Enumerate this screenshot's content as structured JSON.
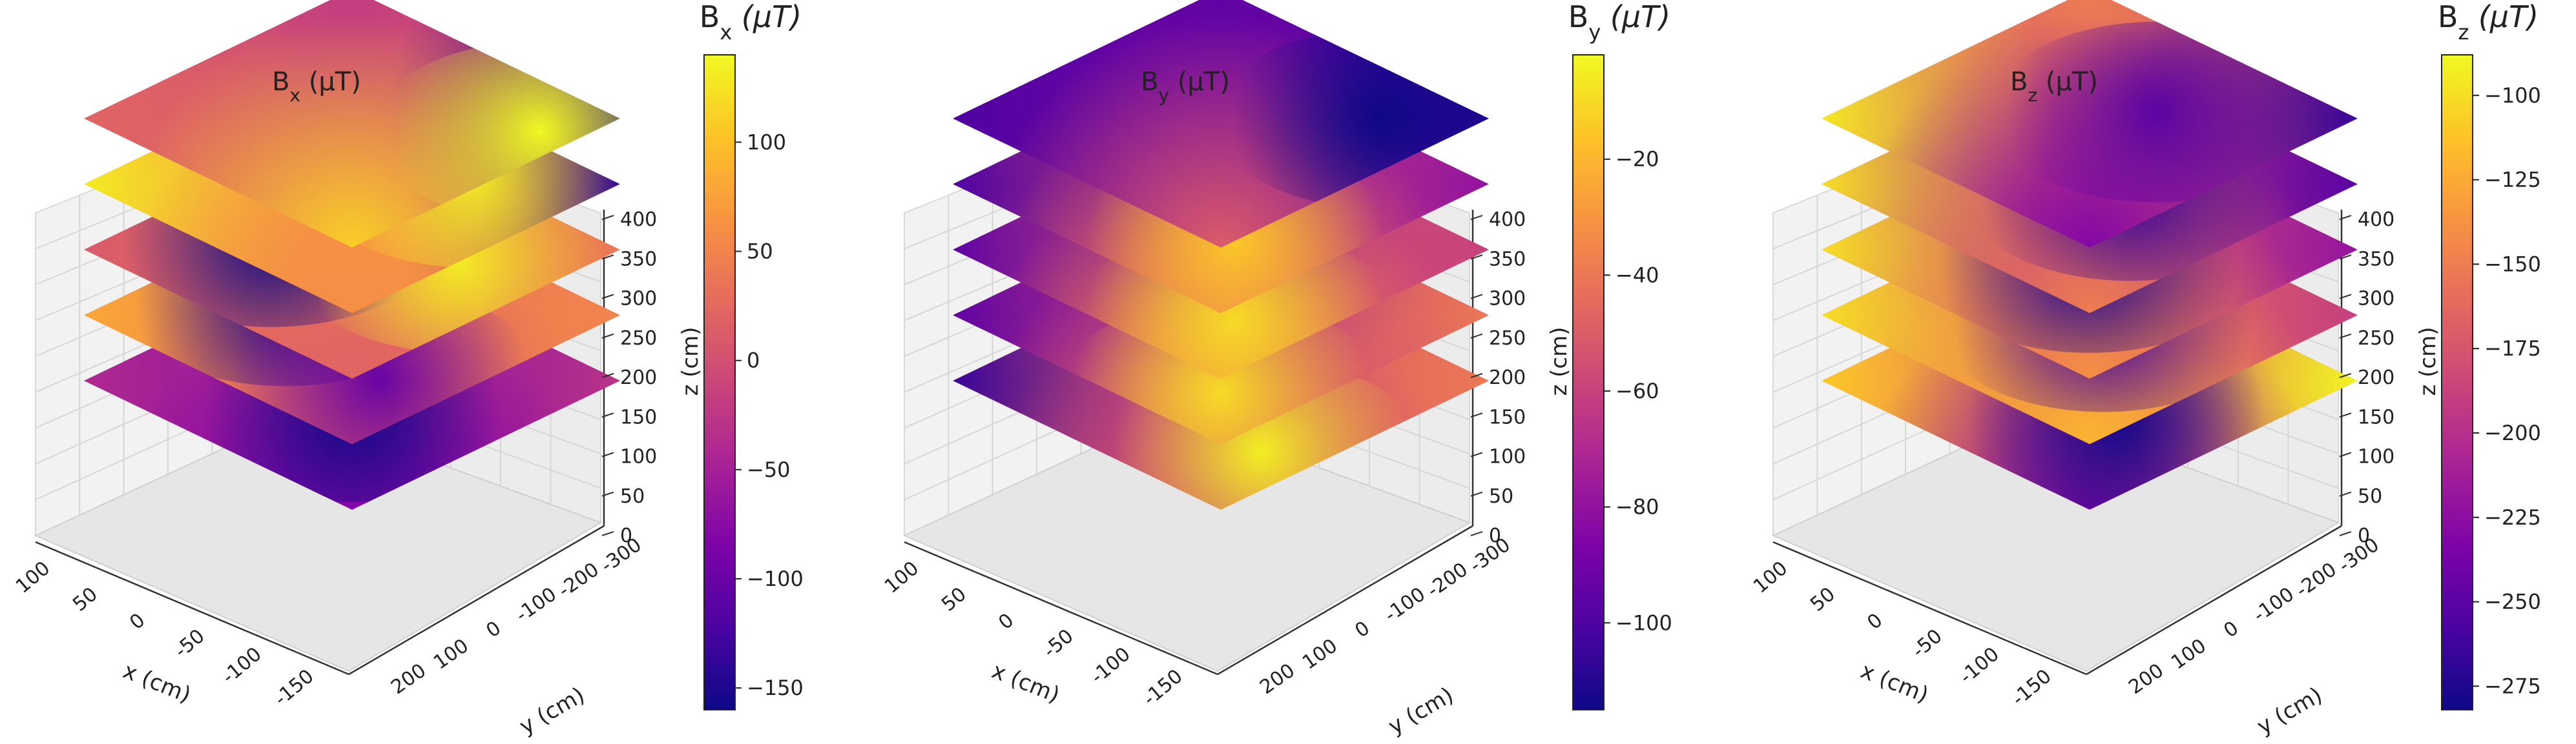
{
  "chart_data": [
    {
      "type": "heatmap",
      "kind": "3d-stacked-planes",
      "title_main": "B",
      "title_sub": "x",
      "title_unit": " (μT)",
      "colorbar_label_main": "B",
      "colorbar_label_sub": "x",
      "colorbar_label_unit": " (μT)",
      "colormap": "plasma",
      "clim": [
        -160,
        140
      ],
      "colorbar_ticks": [
        "100",
        "50",
        "0",
        "−50",
        "−100",
        "−150"
      ],
      "colorbar_tick_values": [
        100,
        50,
        0,
        -50,
        -100,
        -150
      ],
      "xlabel": "x (cm)",
      "ylabel": "y (cm)",
      "zlabel": "z (cm)",
      "x_ticks": [
        "100",
        "50",
        "0",
        "-50",
        "-100",
        "-150"
      ],
      "y_ticks": [
        "-300",
        "-200",
        "-100",
        "0",
        "100",
        "200"
      ],
      "z_ticks": [
        "400",
        "350",
        "300",
        "250",
        "200",
        "150",
        "100",
        "50",
        "0"
      ],
      "xlim": [
        -180,
        120
      ],
      "ylim": [
        -330,
        230
      ],
      "zlim": [
        0,
        410
      ],
      "plane_z": [
        0,
        85,
        170,
        255,
        340
      ],
      "planes": [
        {
          "z": 0,
          "corner_values": {
            "far": -20,
            "left": -40,
            "right": -30,
            "near": -80,
            "center": -70
          },
          "hotspots": [
            [
              0.62,
              0.62,
              -160
            ]
          ]
        },
        {
          "z": 85,
          "corner_values": {
            "far": 30,
            "left": 80,
            "right": 50,
            "near": 10,
            "center": 40
          },
          "hotspots": [
            [
              0.3,
              0.55,
              -150
            ],
            [
              0.8,
              0.7,
              -100
            ]
          ]
        },
        {
          "z": 170,
          "corner_values": {
            "far": 90,
            "left": 10,
            "right": 40,
            "near": 20,
            "center": 30
          },
          "hotspots": [
            [
              0.3,
              0.6,
              -160
            ],
            [
              0.75,
              0.35,
              130
            ]
          ]
        },
        {
          "z": 255,
          "corner_values": {
            "far": 80,
            "left": 130,
            "right": -140,
            "near": 60,
            "center": 60
          },
          "hotspots": [
            [
              0.7,
              0.25,
              130
            ]
          ]
        },
        {
          "z": 340,
          "corner_values": {
            "far": -20,
            "left": 20,
            "right": -150,
            "near": 110,
            "center": 10
          },
          "hotspots": [
            [
              0.9,
              0.2,
              140
            ]
          ]
        }
      ]
    },
    {
      "type": "heatmap",
      "kind": "3d-stacked-planes",
      "title_main": "B",
      "title_sub": "y",
      "title_unit": " (μT)",
      "colorbar_label_main": "B",
      "colorbar_label_sub": "y",
      "colorbar_label_unit": " (μT)",
      "colormap": "plasma",
      "clim": [
        -115,
        -2
      ],
      "colorbar_ticks": [
        "−20",
        "−40",
        "−60",
        "−80",
        "−100"
      ],
      "colorbar_tick_values": [
        -20,
        -40,
        -60,
        -80,
        -100
      ],
      "xlabel": "x (cm)",
      "ylabel": "y (cm)",
      "zlabel": "z (cm)",
      "x_ticks": [
        "100",
        "50",
        "0",
        "-50",
        "-100",
        "-150"
      ],
      "y_ticks": [
        "-300",
        "-200",
        "-100",
        "0",
        "100",
        "200"
      ],
      "z_ticks": [
        "400",
        "350",
        "300",
        "250",
        "200",
        "150",
        "100",
        "50",
        "0"
      ],
      "xlim": [
        -180,
        120
      ],
      "ylim": [
        -330,
        230
      ],
      "zlim": [
        0,
        410
      ],
      "plane_z": [
        0,
        85,
        170,
        255,
        340
      ],
      "planes": [
        {
          "z": 0,
          "corner_values": {
            "far": -60,
            "left": -105,
            "right": -40,
            "near": -60,
            "center": -50
          },
          "hotspots": [
            [
              0.85,
              0.7,
              -5
            ]
          ]
        },
        {
          "z": 85,
          "corner_values": {
            "far": -90,
            "left": -95,
            "right": -40,
            "near": -45,
            "center": -60
          },
          "hotspots": [
            [
              0.8,
              0.8,
              -10
            ]
          ]
        },
        {
          "z": 170,
          "corner_values": {
            "far": -100,
            "left": -95,
            "right": -60,
            "near": -35,
            "center": -55
          },
          "hotspots": [
            [
              0.8,
              0.75,
              -10
            ]
          ]
        },
        {
          "z": 255,
          "corner_values": {
            "far": -100,
            "left": -100,
            "right": -80,
            "near": -40,
            "center": -60
          },
          "hotspots": [
            [
              0.75,
              0.7,
              -15
            ]
          ]
        },
        {
          "z": 340,
          "corner_values": {
            "far": -95,
            "left": -100,
            "right": -110,
            "near": -50,
            "center": -90
          },
          "hotspots": [
            [
              0.8,
              0.2,
              -115
            ]
          ]
        }
      ]
    },
    {
      "type": "heatmap",
      "kind": "3d-stacked-planes",
      "title_main": "B",
      "title_sub": "z",
      "title_unit": " (μT)",
      "colorbar_label_main": "B",
      "colorbar_label_sub": "z",
      "colorbar_label_unit": " (μT)",
      "colormap": "plasma",
      "clim": [
        -282,
        -88
      ],
      "colorbar_ticks": [
        "−100",
        "−125",
        "−150",
        "−175",
        "−200",
        "−225",
        "−250",
        "−275"
      ],
      "colorbar_tick_values": [
        -100,
        -125,
        -150,
        -175,
        -200,
        -225,
        -250,
        -275
      ],
      "xlabel": "x (cm)",
      "ylabel": "y (cm)",
      "zlabel": "z (cm)",
      "x_ticks": [
        "100",
        "50",
        "0",
        "-50",
        "-100",
        "-150"
      ],
      "y_ticks": [
        "-300",
        "-200",
        "-100",
        "0",
        "100",
        "200"
      ],
      "z_ticks": [
        "400",
        "350",
        "300",
        "250",
        "200",
        "150",
        "100",
        "50",
        "0"
      ],
      "xlim": [
        -180,
        120
      ],
      "ylim": [
        -330,
        230
      ],
      "zlim": [
        0,
        410
      ],
      "plane_z": [
        0,
        85,
        170,
        255,
        340
      ],
      "planes": [
        {
          "z": 0,
          "corner_values": {
            "far": -200,
            "left": -110,
            "right": -90,
            "near": -230,
            "center": -160
          },
          "hotspots": [
            [
              0.7,
              0.6,
              -280
            ]
          ]
        },
        {
          "z": 85,
          "corner_values": {
            "far": -180,
            "left": -100,
            "right": -190,
            "near": -120,
            "center": -160
          },
          "hotspots": [
            [
              0.55,
              0.5,
              -260
            ]
          ]
        },
        {
          "z": 170,
          "corner_values": {
            "far": -190,
            "left": -100,
            "right": -220,
            "near": -140,
            "center": -180
          },
          "hotspots": [
            [
              0.55,
              0.55,
              -275
            ]
          ]
        },
        {
          "z": 255,
          "corner_values": {
            "far": -180,
            "left": -100,
            "right": -250,
            "near": -150,
            "center": -200
          },
          "hotspots": [
            [
              0.6,
              0.45,
              -265
            ]
          ]
        },
        {
          "z": 340,
          "corner_values": {
            "far": -150,
            "left": -95,
            "right": -265,
            "near": -230,
            "center": -180
          },
          "hotspots": [
            [
              0.6,
              0.35,
              -250
            ]
          ]
        }
      ]
    }
  ]
}
